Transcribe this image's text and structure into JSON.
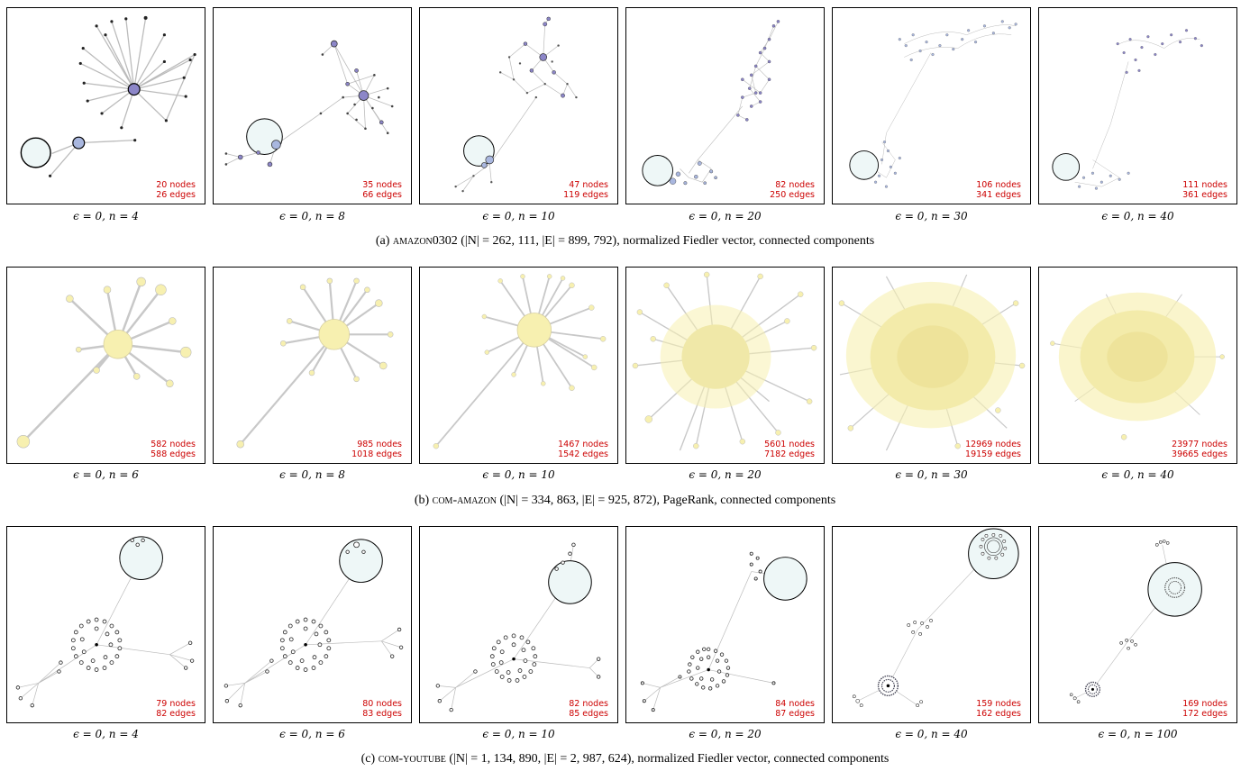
{
  "rows": [
    {
      "caption": {
        "label": "(a)",
        "name": "amazon0302",
        "stats": "(|N| = 262, 111, |E| = 899, 792), normalized Fiedler vector, connected components"
      },
      "panels": [
        {
          "nodes_text": "20 nodes",
          "edges_text": "26 edges",
          "caption": "ϵ = 0, n = 4"
        },
        {
          "nodes_text": "35 nodes",
          "edges_text": "66 edges",
          "caption": "ϵ = 0, n = 8"
        },
        {
          "nodes_text": "47 nodes",
          "edges_text": "119 edges",
          "caption": "ϵ = 0, n = 10"
        },
        {
          "nodes_text": "82 nodes",
          "edges_text": "250 edges",
          "caption": "ϵ = 0, n = 20"
        },
        {
          "nodes_text": "106 nodes",
          "edges_text": "341 edges",
          "caption": "ϵ = 0, n = 30"
        },
        {
          "nodes_text": "111 nodes",
          "edges_text": "361 edges",
          "caption": "ϵ = 0, n = 40"
        }
      ]
    },
    {
      "caption": {
        "label": "(b)",
        "name": "com-amazon",
        "stats": "(|N| = 334, 863, |E| = 925, 872), PageRank, connected components"
      },
      "panels": [
        {
          "nodes_text": "582 nodes",
          "edges_text": "588 edges",
          "caption": "ϵ = 0, n = 6"
        },
        {
          "nodes_text": "985 nodes",
          "edges_text": "1018 edges",
          "caption": "ϵ = 0, n = 8"
        },
        {
          "nodes_text": "1467 nodes",
          "edges_text": "1542 edges",
          "caption": "ϵ = 0, n = 10"
        },
        {
          "nodes_text": "5601 nodes",
          "edges_text": "7182 edges",
          "caption": "ϵ = 0, n = 20"
        },
        {
          "nodes_text": "12969 nodes",
          "edges_text": "19159 edges",
          "caption": "ϵ = 0, n = 30"
        },
        {
          "nodes_text": "23977 nodes",
          "edges_text": "39665 edges",
          "caption": "ϵ = 0, n = 40"
        }
      ]
    },
    {
      "caption": {
        "label": "(c)",
        "name": "com-youtube",
        "stats": "(|N| = 1, 134, 890, |E| = 2, 987, 624), normalized Fiedler vector, connected components"
      },
      "panels": [
        {
          "nodes_text": "79 nodes",
          "edges_text": "82 edges",
          "caption": "ϵ = 0, n = 4"
        },
        {
          "nodes_text": "80 nodes",
          "edges_text": "83 edges",
          "caption": "ϵ = 0, n = 6"
        },
        {
          "nodes_text": "82 nodes",
          "edges_text": "85 edges",
          "caption": "ϵ = 0, n = 10"
        },
        {
          "nodes_text": "84 nodes",
          "edges_text": "87 edges",
          "caption": "ϵ = 0, n = 20"
        },
        {
          "nodes_text": "159 nodes",
          "edges_text": "162 edges",
          "caption": "ϵ = 0, n = 40"
        },
        {
          "nodes_text": "169 nodes",
          "edges_text": "172 edges",
          "caption": "ϵ = 0, n = 100"
        }
      ]
    }
  ],
  "colors": {
    "stats_text": "#cc0000",
    "fiedler_node": "#8c86c8",
    "fiedler_node_light": "#a9b7df",
    "pagerank_node": "#f7f0b0",
    "component_fill": "#eef7f7",
    "edge": "#b8b8b8"
  }
}
